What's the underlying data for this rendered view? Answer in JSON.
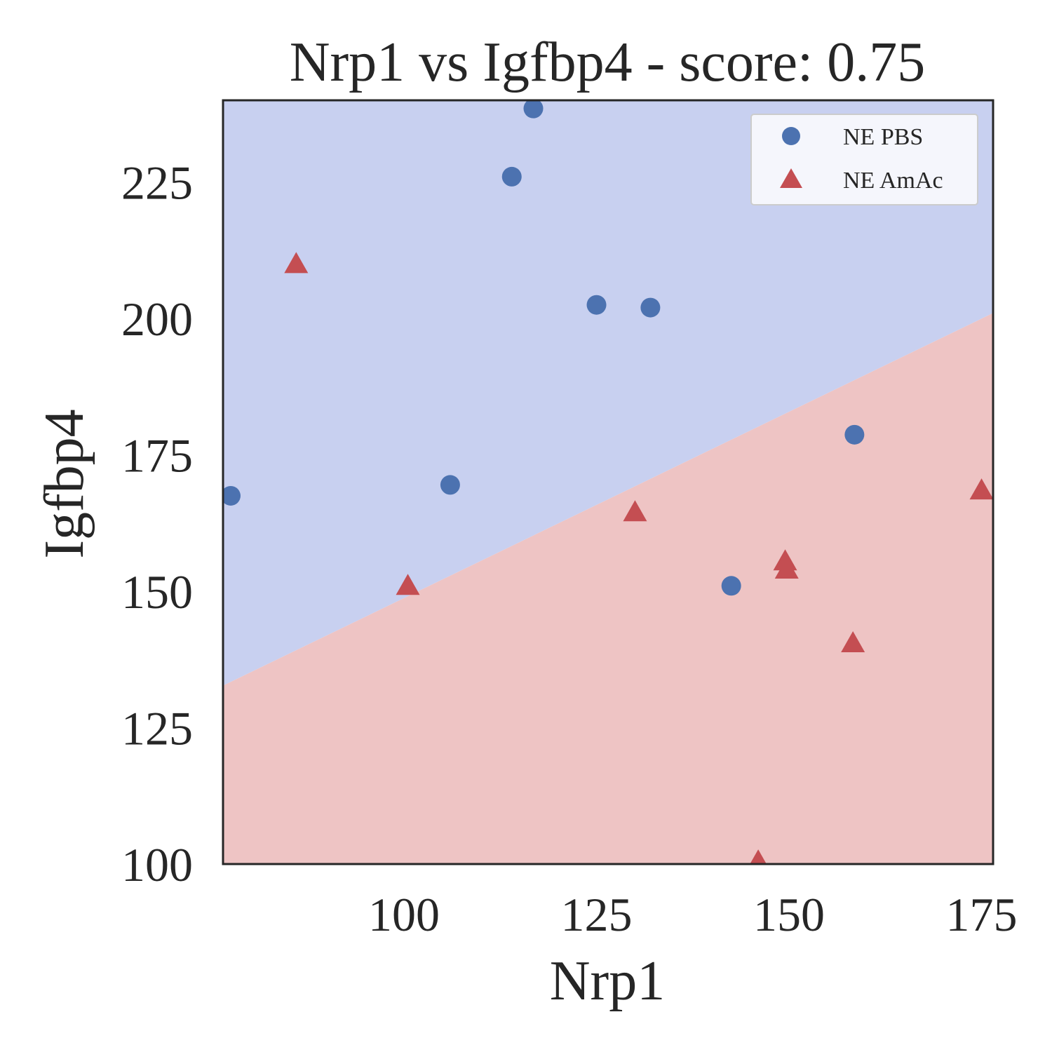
{
  "chart_data": {
    "type": "scatter",
    "title": "Nrp1 vs Igfbp4 - score: 0.75",
    "xlabel": "Nrp1",
    "ylabel": "Igfbp4",
    "xlim": [
      76.5,
      176.5
    ],
    "ylim": [
      100,
      240
    ],
    "xticks": [
      100,
      125,
      150,
      175
    ],
    "yticks": [
      100,
      125,
      150,
      175,
      200,
      225
    ],
    "grid": false,
    "legend_position": "top-right",
    "decision_boundary": {
      "points": [
        [
          76.5,
          132.7
        ],
        [
          176.5,
          201.0
        ]
      ],
      "upper_region_label": "NE PBS",
      "lower_region_label": "NE AmAc",
      "upper_color": "#c8d0f0",
      "lower_color": "#eec4c4"
    },
    "series": [
      {
        "name": "NE PBS",
        "marker": "circle",
        "color": "#4c72b0",
        "points": [
          [
            77.5,
            167.5
          ],
          [
            106,
            169.5
          ],
          [
            114,
            226
          ],
          [
            116.8,
            238.5
          ],
          [
            125,
            202.5
          ],
          [
            132,
            202
          ],
          [
            142.5,
            151
          ],
          [
            158.5,
            178.7
          ]
        ]
      },
      {
        "name": "NE AmAc",
        "marker": "triangle",
        "color": "#c44e52",
        "points": [
          [
            86,
            210
          ],
          [
            100.5,
            151
          ],
          [
            130,
            164.5
          ],
          [
            146,
            100.5
          ],
          [
            149.5,
            155.5
          ],
          [
            149.7,
            154
          ],
          [
            158.3,
            140.5
          ],
          [
            175,
            168.5
          ]
        ]
      }
    ]
  }
}
